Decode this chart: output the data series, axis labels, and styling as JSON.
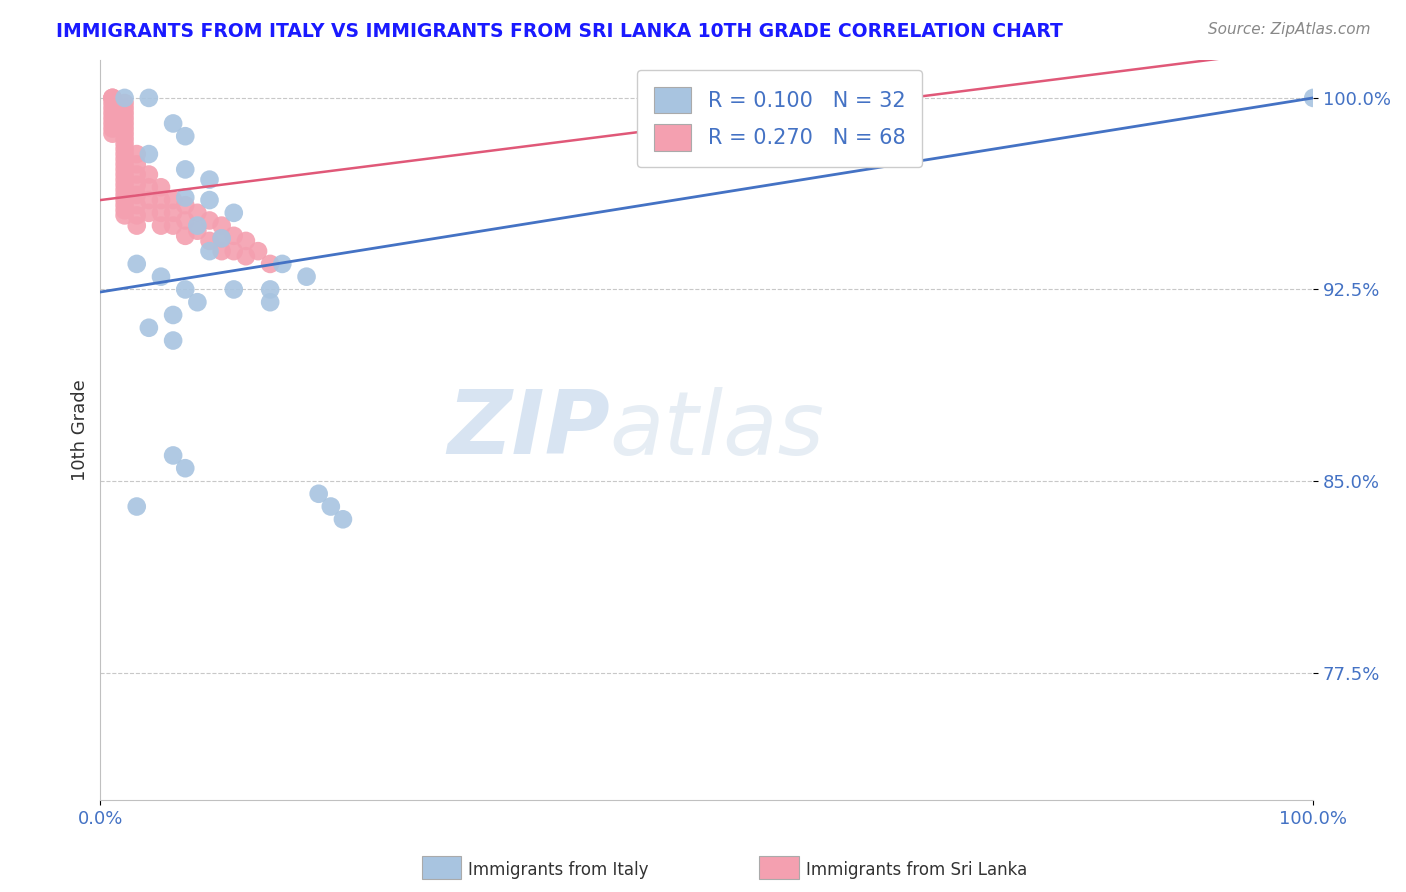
{
  "title": "IMMIGRANTS FROM ITALY VS IMMIGRANTS FROM SRI LANKA 10TH GRADE CORRELATION CHART",
  "source": "Source: ZipAtlas.com",
  "ylabel": "10th Grade",
  "xmin": 0.0,
  "xmax": 1.0,
  "ymin": 0.725,
  "ymax": 1.015,
  "yticks": [
    0.775,
    0.85,
    0.925,
    1.0
  ],
  "ytick_labels": [
    "77.5%",
    "85.0%",
    "92.5%",
    "100.0%"
  ],
  "xtick_labels": [
    "0.0%",
    "100.0%"
  ],
  "xtick_positions": [
    0.0,
    1.0
  ],
  "italy_color": "#a8c4e0",
  "sri_lanka_color": "#f4a0b0",
  "trend_italy_color": "#4472c4",
  "trend_sri_lanka_color": "#e05878",
  "r_italy": 0.1,
  "n_italy": 32,
  "r_sri_lanka": 0.27,
  "n_sri_lanka": 68,
  "watermark_zip": "ZIP",
  "watermark_atlas": "atlas",
  "legend_label_italy": "Immigrants from Italy",
  "legend_label_sri_lanka": "Immigrants from Sri Lanka",
  "italy_x": [
    0.02,
    0.04,
    0.06,
    0.07,
    0.04,
    0.07,
    0.09,
    0.07,
    0.09,
    0.11,
    0.08,
    0.1,
    0.09,
    0.03,
    0.05,
    0.07,
    0.17,
    0.08,
    0.11,
    0.06,
    0.04,
    0.06,
    0.14,
    0.15,
    0.14,
    0.06,
    0.07,
    0.03,
    0.18,
    0.19,
    0.2,
    1.0
  ],
  "italy_y": [
    1.0,
    1.0,
    0.99,
    0.985,
    0.978,
    0.972,
    0.968,
    0.961,
    0.96,
    0.955,
    0.95,
    0.945,
    0.94,
    0.935,
    0.93,
    0.925,
    0.93,
    0.92,
    0.925,
    0.915,
    0.91,
    0.905,
    0.92,
    0.935,
    0.925,
    0.86,
    0.855,
    0.84,
    0.845,
    0.84,
    0.835,
    1.0
  ],
  "sri_lanka_x": [
    0.01,
    0.01,
    0.01,
    0.01,
    0.01,
    0.01,
    0.01,
    0.01,
    0.01,
    0.01,
    0.02,
    0.02,
    0.02,
    0.02,
    0.02,
    0.02,
    0.02,
    0.02,
    0.02,
    0.02,
    0.02,
    0.02,
    0.02,
    0.02,
    0.02,
    0.02,
    0.02,
    0.02,
    0.02,
    0.02,
    0.02,
    0.02,
    0.02,
    0.03,
    0.03,
    0.03,
    0.03,
    0.03,
    0.03,
    0.03,
    0.03,
    0.04,
    0.04,
    0.04,
    0.04,
    0.05,
    0.05,
    0.05,
    0.05,
    0.06,
    0.06,
    0.06,
    0.07,
    0.07,
    0.07,
    0.08,
    0.08,
    0.09,
    0.09,
    0.1,
    0.1,
    0.1,
    0.11,
    0.11,
    0.12,
    0.12,
    0.13,
    0.14
  ],
  "sri_lanka_y": [
    1.0,
    1.0,
    1.0,
    0.998,
    0.996,
    0.994,
    0.992,
    0.99,
    0.988,
    0.986,
    0.998,
    0.996,
    0.994,
    0.992,
    0.99,
    0.988,
    0.986,
    0.984,
    0.982,
    0.98,
    0.978,
    0.976,
    0.974,
    0.972,
    0.97,
    0.968,
    0.966,
    0.964,
    0.962,
    0.96,
    0.958,
    0.956,
    0.954,
    0.978,
    0.974,
    0.97,
    0.966,
    0.962,
    0.958,
    0.954,
    0.95,
    0.97,
    0.965,
    0.96,
    0.955,
    0.965,
    0.96,
    0.955,
    0.95,
    0.96,
    0.955,
    0.95,
    0.958,
    0.952,
    0.946,
    0.955,
    0.948,
    0.952,
    0.944,
    0.95,
    0.945,
    0.94,
    0.946,
    0.94,
    0.944,
    0.938,
    0.94,
    0.935
  ]
}
